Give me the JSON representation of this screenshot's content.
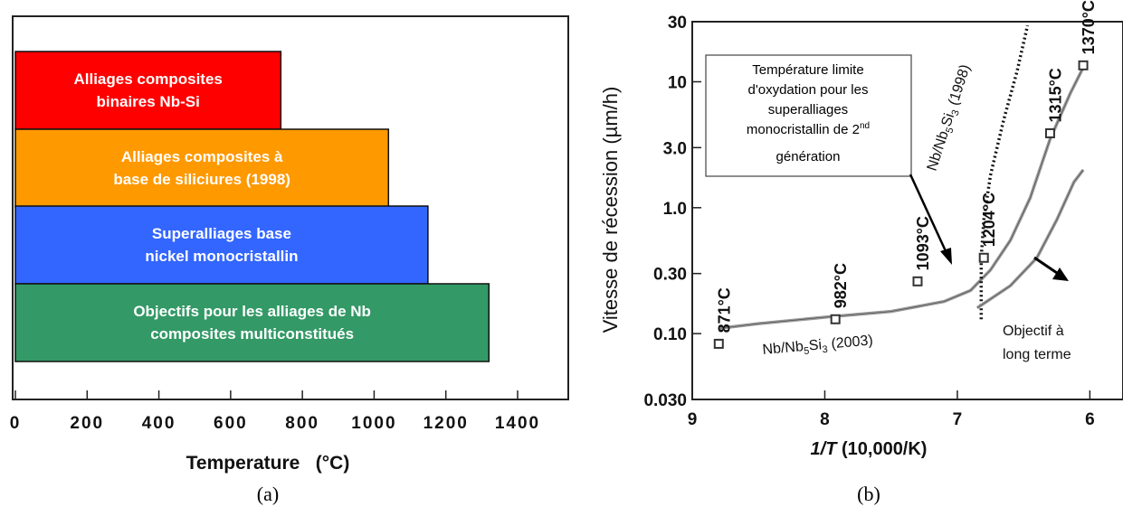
{
  "chart_data": [
    {
      "type": "bar",
      "orientation": "horizontal",
      "panel_label": "(a)",
      "xlabel": "Temperature   (°C)",
      "xlim": [
        0,
        1400
      ],
      "xticks": [
        "0",
        "200",
        "400",
        "600",
        "800",
        "1000",
        "1200",
        "1400"
      ],
      "grid": false,
      "bars": [
        {
          "lines": [
            "Alliages composites",
            "binaires Nb-Si"
          ],
          "value": 740,
          "color": "#ff0000"
        },
        {
          "lines": [
            "Alliages composites à",
            "base de siliciures (1998)"
          ],
          "value": 1040,
          "color": "#ff9900"
        },
        {
          "lines": [
            "Superalliages base",
            "nickel monocristallin"
          ],
          "value": 1150,
          "color": "#3366ff"
        },
        {
          "lines": [
            "Objectifs pour les alliages de  Nb",
            "composites multiconstitués"
          ],
          "value": 1320,
          "color": "#339966"
        }
      ]
    },
    {
      "type": "line",
      "panel_label": "(b)",
      "xlabel_italic": "1/T",
      "xlabel_rest": " (10,000/K)",
      "ylabel": "Vitesse de récession (µm/h)",
      "x_reversed": true,
      "xlim": [
        9,
        5.75
      ],
      "y_scale": "log",
      "ylim": [
        0.03,
        30
      ],
      "xticks": [
        9,
        8,
        7,
        6
      ],
      "yticks": [
        {
          "value": 30,
          "label": "30"
        },
        {
          "value": 10,
          "label": "10"
        },
        {
          "value": 3,
          "label": "3.0"
        },
        {
          "value": 1,
          "label": "1.0"
        },
        {
          "value": 0.3,
          "label": "0.30"
        },
        {
          "value": 0.1,
          "label": "0.10"
        },
        {
          "value": 0.03,
          "label": "0.030"
        }
      ],
      "series": [
        {
          "name": "Nb/Nb5Si3 (2003)",
          "style": "solid-gray",
          "points": [
            [
              8.8,
              0.11
            ],
            [
              8.5,
              0.12
            ],
            [
              8.0,
              0.135
            ],
            [
              7.5,
              0.15
            ],
            [
              7.1,
              0.18
            ],
            [
              6.9,
              0.22
            ],
            [
              6.75,
              0.32
            ],
            [
              6.6,
              0.55
            ],
            [
              6.45,
              1.2
            ],
            [
              6.3,
              3.5
            ],
            [
              6.15,
              8
            ],
            [
              6.05,
              13
            ]
          ]
        },
        {
          "name": "Nb/Nb5Si3 (1998)",
          "style": "dotted-black",
          "points": [
            [
              6.82,
              0.13
            ],
            [
              6.82,
              0.4
            ],
            [
              6.8,
              0.8
            ],
            [
              6.75,
              1.8
            ],
            [
              6.65,
              5
            ],
            [
              6.55,
              12
            ],
            [
              6.47,
              28
            ]
          ]
        },
        {
          "name": "Objectif à long terme",
          "style": "solid-gray",
          "points": [
            [
              6.85,
              0.16
            ],
            [
              6.6,
              0.24
            ],
            [
              6.4,
              0.4
            ],
            [
              6.25,
              0.8
            ],
            [
              6.12,
              1.6
            ],
            [
              6.05,
              2.0
            ]
          ]
        }
      ],
      "temperature_points": [
        {
          "label": "871°C",
          "x": 8.8,
          "y": 0.083
        },
        {
          "label": "982°C",
          "x": 7.92,
          "y": 0.13
        },
        {
          "label": "1093°C",
          "x": 7.3,
          "y": 0.26
        },
        {
          "label": "1204°C",
          "x": 6.8,
          "y": 0.4
        },
        {
          "label": "1315°C",
          "x": 6.3,
          "y": 3.9
        },
        {
          "label": "1370°C",
          "x": 6.05,
          "y": 13.5
        }
      ],
      "annotation_box": {
        "lines": [
          "Température limite",
          "d'oxydation pour les",
          "superalliages",
          "monocristallin de 2"
        ],
        "superscript": "nd",
        "last_line": "génération"
      },
      "label_1998": {
        "base": "Nb/Nb",
        "sub": "5",
        "mid": "Si",
        "sub2": "3",
        "tail": " (1998)"
      },
      "label_2003": {
        "base": "Nb/Nb",
        "sub": "5",
        "mid": "Si",
        "sub2": "3",
        "tail": " (2003)"
      },
      "goal_label": [
        "Objectif à",
        "long terme"
      ]
    }
  ]
}
